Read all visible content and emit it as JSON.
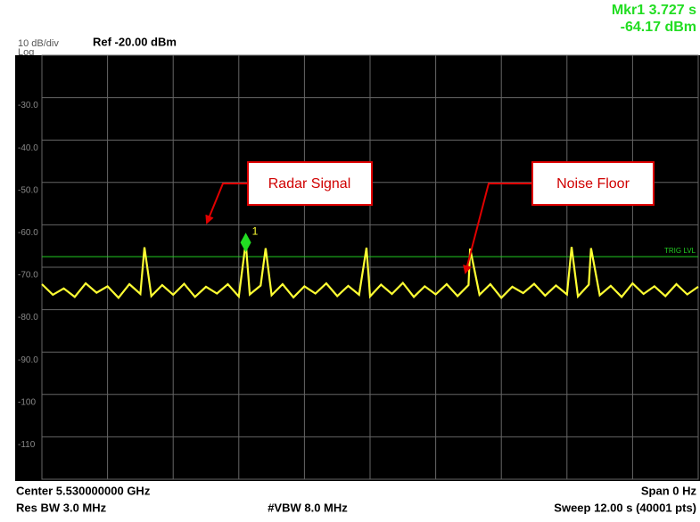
{
  "chart_data": {
    "type": "line",
    "scale_label": "10 dB/div",
    "scale_type": "Log",
    "reference": "Ref -20.00 dBm",
    "marker_readout": [
      "Mkr1 3.727 s",
      "-64.17 dBm"
    ],
    "marker": {
      "label": "1",
      "x": 3.727,
      "y": -64.17,
      "color": "#22dd22"
    },
    "trig_level": -67.5,
    "trig_label": "TRIG LVL",
    "trig_color": "#22cc22",
    "annotations": [
      {
        "text": "Radar Signal"
      },
      {
        "text": "Noise Floor"
      }
    ],
    "footer": {
      "center": "Center 5.530000000 GHz",
      "span": "Span 0 Hz",
      "rbw": "Res BW 3.0 MHz",
      "vbw": "#VBW 8.0 MHz",
      "sweep": "Sweep  12.00 s (40001 pts)"
    },
    "xlim": [
      0,
      12
    ],
    "ylim": [
      -120,
      -20
    ],
    "yticks": [
      {
        "value": -30,
        "label": "-30.0"
      },
      {
        "value": -40,
        "label": "-40.0"
      },
      {
        "value": -50,
        "label": "-50.0"
      },
      {
        "value": -60,
        "label": "-60.0"
      },
      {
        "value": -70,
        "label": "-70.0"
      },
      {
        "value": -80,
        "label": "-80.0"
      },
      {
        "value": -90,
        "label": "-90.0"
      },
      -100,
      -110
    ],
    "grid": true,
    "x": [
      0,
      0.2,
      0.4,
      0.6,
      0.8,
      1,
      1.2,
      1.4,
      1.6,
      1.8,
      1.875,
      2,
      2.2,
      2.4,
      2.6,
      2.8,
      3,
      3.2,
      3.4,
      3.6,
      3.727,
      3.8,
      4,
      4.09,
      4.2,
      4.4,
      4.6,
      4.8,
      5,
      5.2,
      5.4,
      5.6,
      5.8,
      5.935,
      6,
      6.2,
      6.4,
      6.6,
      6.8,
      7,
      7.2,
      7.4,
      7.6,
      7.8,
      7.83,
      8,
      8.2,
      8.4,
      8.6,
      8.8,
      9,
      9.2,
      9.4,
      9.6,
      9.685,
      9.8,
      10,
      10.04,
      10.2,
      10.4,
      10.6,
      10.8,
      11,
      11.2,
      11.4,
      11.6,
      11.8,
      12
    ],
    "series": [
      {
        "name": "Trace 1",
        "color": "#ffff33",
        "values": [
          -74,
          -76.5,
          -75,
          -77,
          -73.8,
          -76,
          -74.5,
          -77.2,
          -74,
          -76.3,
          -65.3,
          -76.8,
          -74.2,
          -76.5,
          -73.9,
          -77,
          -74.6,
          -76.2,
          -74,
          -76.9,
          -64.17,
          -76.4,
          -74.3,
          -65.5,
          -76.6,
          -74,
          -77.1,
          -74.5,
          -76.2,
          -73.8,
          -76.8,
          -74.4,
          -76.5,
          -65.4,
          -76.9,
          -74.1,
          -76.3,
          -73.7,
          -77,
          -74.5,
          -76.4,
          -74,
          -76.8,
          -74.2,
          -65.6,
          -76.5,
          -74,
          -77.2,
          -74.6,
          -76.1,
          -73.9,
          -76.7,
          -74.3,
          -76.4,
          -65.2,
          -76.9,
          -74.1,
          -65.5,
          -76.6,
          -74.4,
          -77,
          -73.8,
          -76.3,
          -74.5,
          -76.8,
          -74,
          -76.4,
          -74.6
        ]
      }
    ]
  }
}
